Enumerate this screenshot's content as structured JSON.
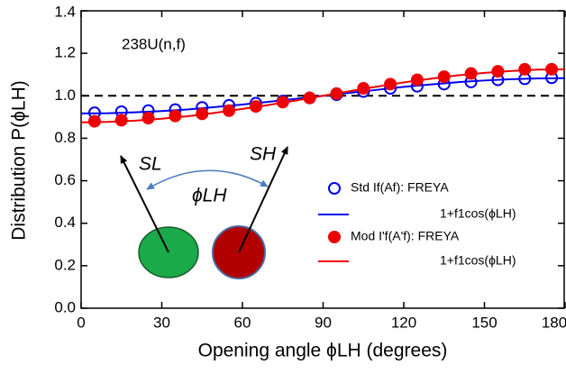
{
  "chart_data": {
    "type": "scatter",
    "annotation": "238U(n,f)",
    "x_label": "Opening angle ϕLH (degrees)",
    "y_label": "Distribution P(ϕLH)",
    "xlim": [
      0,
      180
    ],
    "xticks": [
      0,
      30,
      60,
      90,
      120,
      150,
      180
    ],
    "ylim": [
      0,
      1.4
    ],
    "yticks": [
      {
        "value": 0,
        "label": "0.0"
      },
      {
        "value": 0.2,
        "label": "0.2"
      },
      {
        "value": 0.4,
        "label": "0.4"
      },
      {
        "value": 0.6,
        "label": "0.6"
      },
      {
        "value": 0.8,
        "label": "0.8"
      },
      {
        "value": 1,
        "label": "1.0"
      },
      {
        "value": 1.2,
        "label": "1.2"
      },
      {
        "value": 1.4,
        "label": "1.4"
      }
    ],
    "hline": 1,
    "diagram_labels": [
      "SL",
      "SH",
      "ϕLH"
    ],
    "series": [
      {
        "name": "Std If(Af):  FREYA",
        "color": "#0000ee",
        "marker": "open-circle",
        "x": [
          5,
          15,
          25,
          35,
          45,
          55,
          65,
          75,
          85,
          95,
          105,
          115,
          125,
          135,
          145,
          155,
          165,
          175
        ],
        "values": [
          0.92,
          0.925,
          0.93,
          0.935,
          0.945,
          0.955,
          0.965,
          0.975,
          0.99,
          1.005,
          1.02,
          1.035,
          1.045,
          1.055,
          1.065,
          1.075,
          1.08,
          1.085
        ]
      },
      {
        "name": "1+f1cos(ϕLH)",
        "color": "#0000ee",
        "marker": "line",
        "x": [
          0,
          10,
          20,
          30,
          40,
          50,
          60,
          70,
          80,
          90,
          100,
          110,
          120,
          130,
          140,
          150,
          160,
          170,
          180
        ],
        "values": [
          0.917,
          0.918,
          0.922,
          0.928,
          0.936,
          0.947,
          0.959,
          0.972,
          0.986,
          1.0,
          1.014,
          1.028,
          1.042,
          1.053,
          1.064,
          1.072,
          1.078,
          1.082,
          1.083
        ]
      },
      {
        "name": "Mod I'f(A'f):  FREYA",
        "color": "#ee0000",
        "marker": "filled-circle",
        "x": [
          5,
          15,
          25,
          35,
          45,
          55,
          65,
          75,
          85,
          95,
          105,
          115,
          125,
          135,
          145,
          155,
          165,
          175
        ],
        "values": [
          0.88,
          0.885,
          0.895,
          0.905,
          0.915,
          0.93,
          0.95,
          0.97,
          0.99,
          1.01,
          1.035,
          1.055,
          1.075,
          1.09,
          1.105,
          1.115,
          1.125,
          1.125
        ]
      },
      {
        "name": "1+f1cos(ϕLH)",
        "color": "#ee0000",
        "marker": "line",
        "x": [
          0,
          10,
          20,
          30,
          40,
          50,
          60,
          70,
          80,
          90,
          100,
          110,
          120,
          130,
          140,
          150,
          160,
          170,
          180
        ],
        "values": [
          0.875,
          0.877,
          0.883,
          0.892,
          0.904,
          0.92,
          0.938,
          0.957,
          0.978,
          1.0,
          1.022,
          1.043,
          1.063,
          1.08,
          1.096,
          1.108,
          1.117,
          1.123,
          1.125
        ]
      }
    ]
  }
}
